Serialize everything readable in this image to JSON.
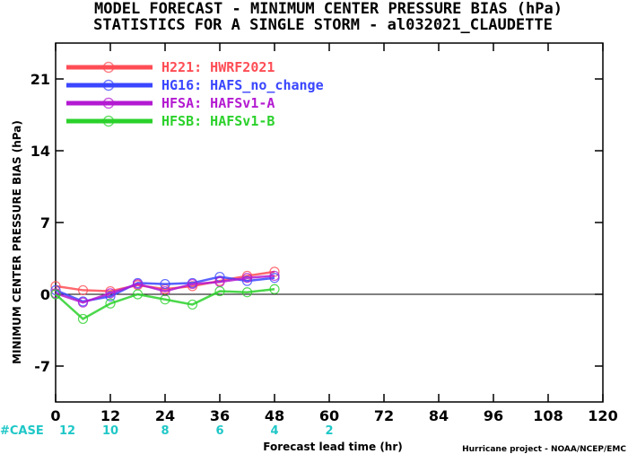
{
  "chart_data": {
    "type": "line",
    "title": "MODEL FORECAST - MINIMUM CENTER PRESSURE BIAS (hPa)",
    "subtitle": "STATISTICS FOR A SINGLE STORM - al032021_CLAUDETTE",
    "xlabel": "Forecast lead time (hr)",
    "ylabel": "MINIMUM CENTER PRESSURE BIAS (hPa)",
    "xlim": [
      0,
      120
    ],
    "ylim": [
      -10.5,
      24.5
    ],
    "xticks": [
      0,
      12,
      24,
      36,
      48,
      60,
      72,
      84,
      96,
      108,
      120
    ],
    "yticks": [
      -7,
      0,
      7,
      14,
      21
    ],
    "zero_line": true,
    "legend_position": "top-left",
    "case_label": "#CASE",
    "cases": [
      {
        "x": 0,
        "n": "12"
      },
      {
        "x": 12,
        "n": "10"
      },
      {
        "x": 24,
        "n": "8"
      },
      {
        "x": 36,
        "n": "6"
      },
      {
        "x": 48,
        "n": "4"
      },
      {
        "x": 60,
        "n": "2"
      }
    ],
    "credit": "Hurricane project - NOAA/NCEP/EMC",
    "series": [
      {
        "name": "H221: HWRF2021",
        "color": "#ff4d55",
        "x": [
          0,
          6,
          12,
          18,
          24,
          30,
          36,
          42,
          48
        ],
        "y": [
          0.8,
          0.4,
          0.3,
          0.9,
          0.5,
          0.8,
          1.3,
          1.8,
          2.2
        ]
      },
      {
        "name": "HG16: HAFS_no_change",
        "color": "#3a46ff",
        "x": [
          0,
          6,
          12,
          18,
          24,
          30,
          36,
          42,
          48
        ],
        "y": [
          0.4,
          -0.7,
          -0.2,
          1.1,
          1.0,
          1.1,
          1.7,
          1.3,
          1.6
        ]
      },
      {
        "name": "HFSA: HAFSv1-A",
        "color": "#b31ad1",
        "x": [
          0,
          6,
          12,
          18,
          24,
          30,
          36,
          42,
          48
        ],
        "y": [
          0.1,
          -0.8,
          0.1,
          1.0,
          0.3,
          1.0,
          1.2,
          1.6,
          1.8
        ]
      },
      {
        "name": "HFSB: HAFSv1-B",
        "color": "#2bd12b",
        "x": [
          0,
          6,
          12,
          18,
          24,
          30,
          36,
          42,
          48
        ],
        "y": [
          0.0,
          -2.4,
          -0.9,
          0.0,
          -0.5,
          -1.0,
          0.3,
          0.2,
          0.5
        ]
      }
    ]
  }
}
